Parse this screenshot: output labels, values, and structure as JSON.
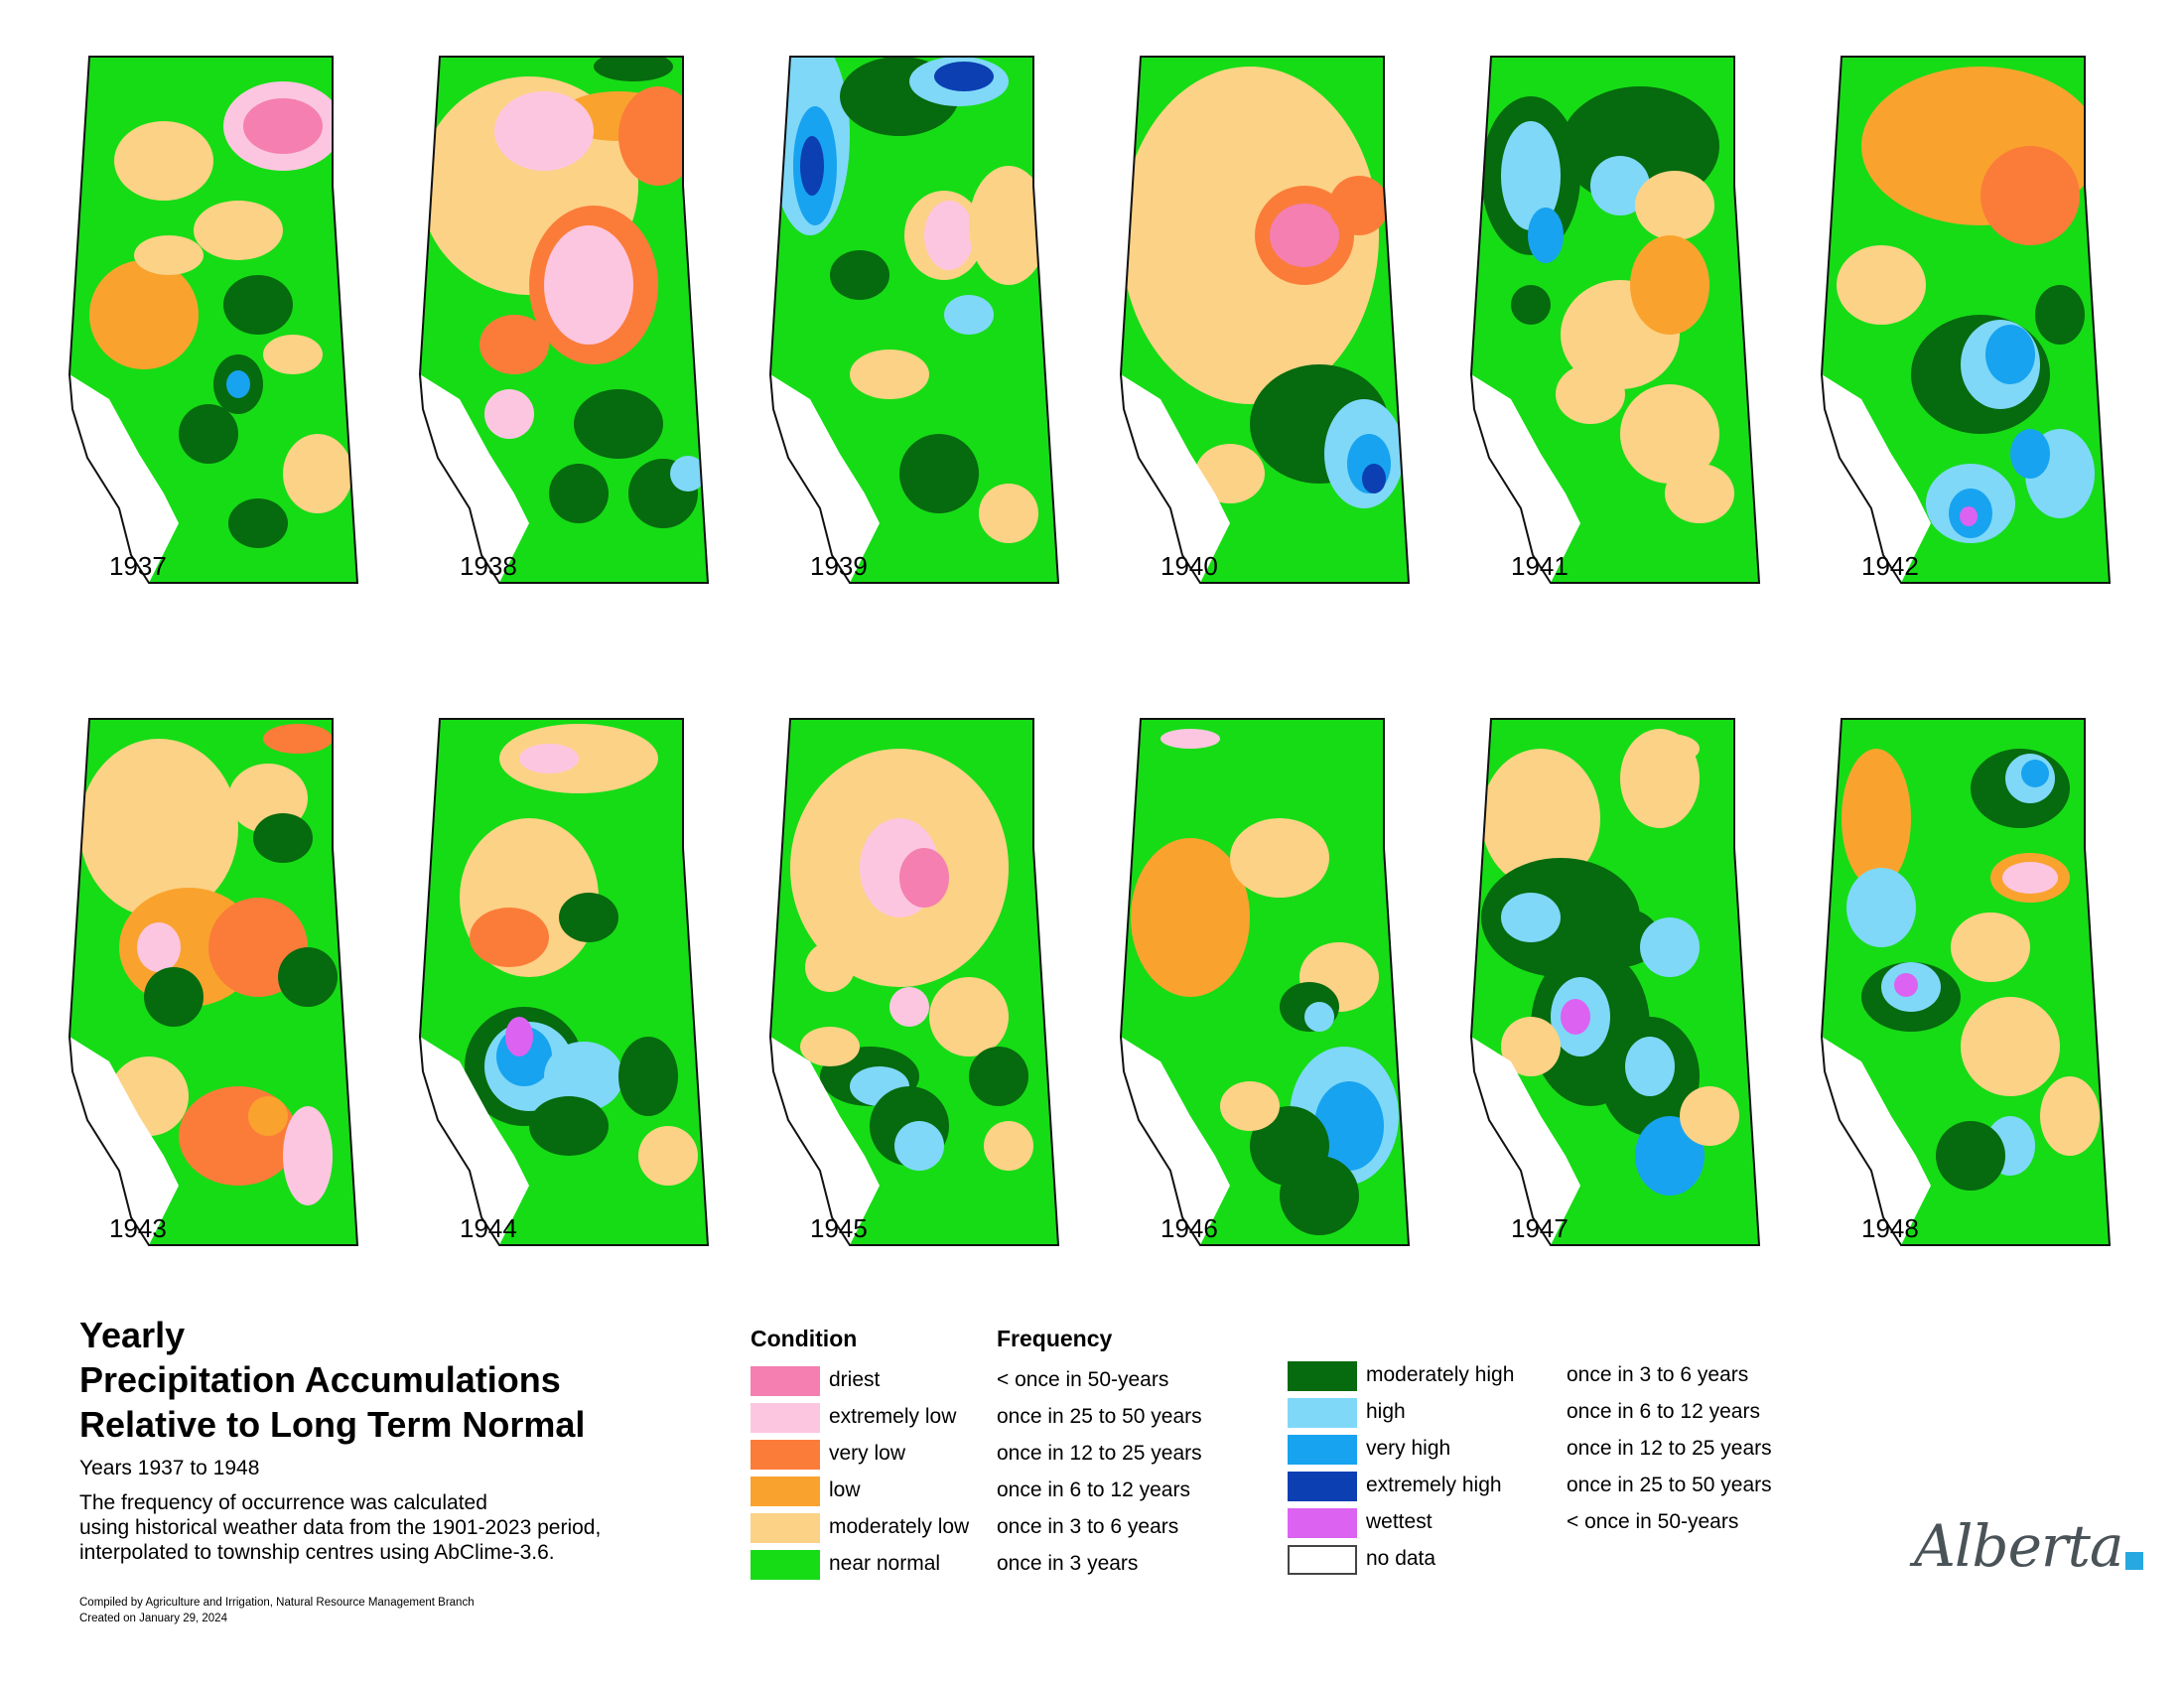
{
  "years": [
    "1937",
    "1938",
    "1939",
    "1940",
    "1941",
    "1942",
    "1943",
    "1944",
    "1945",
    "1946",
    "1947",
    "1948"
  ],
  "title": {
    "lines": [
      "Yearly",
      "Precipitation Accumulations",
      "Relative to Long Term Normal"
    ],
    "subtitle": "Years 1937 to 1948",
    "notes": [
      "The frequency of occurrence was calculated",
      "using historical weather data from the 1901-2023 period,",
      "interpolated to township centres using AbClime-3.6."
    ]
  },
  "credits": [
    "Compiled by Agriculture and Irrigation, Natural Resource Management Branch",
    "Created on January 29, 2024"
  ],
  "legend": {
    "condition_header": "Condition",
    "frequency_header": "Frequency",
    "left": [
      {
        "condition": "driest",
        "frequency": "< once in 50-years",
        "color": "#f47fb0"
      },
      {
        "condition": "extremely low",
        "frequency": "once in 25 to 50 years",
        "color": "#fdc6e0"
      },
      {
        "condition": "very low",
        "frequency": "once in 12 to 25 years",
        "color": "#fb7c39"
      },
      {
        "condition": "low",
        "frequency": "once in 6 to 12 years",
        "color": "#f9a32e"
      },
      {
        "condition": "moderately low",
        "frequency": "once in 3 to 6 years",
        "color": "#fcd286"
      },
      {
        "condition": "near normal",
        "frequency": "once in 3 years",
        "color": "#16dc16"
      }
    ],
    "right": [
      {
        "condition": "moderately high",
        "frequency": "once in 3 to 6 years",
        "color": "#066a0e"
      },
      {
        "condition": "high",
        "frequency": "once in 6 to 12 years",
        "color": "#7fd8f8"
      },
      {
        "condition": "very high",
        "frequency": "once in 12 to 25 years",
        "color": "#17a3f0"
      },
      {
        "condition": "extremely high",
        "frequency": "once in 25 to 50 years",
        "color": "#0b3fb2"
      },
      {
        "condition": "wettest",
        "frequency": "< once in 50-years",
        "color": "#dc62f2"
      },
      {
        "condition": "no data",
        "frequency": "",
        "color": "#ffffff"
      }
    ]
  },
  "logo": {
    "wordmark": "Alberta",
    "accent_color": "#27a8e0"
  }
}
